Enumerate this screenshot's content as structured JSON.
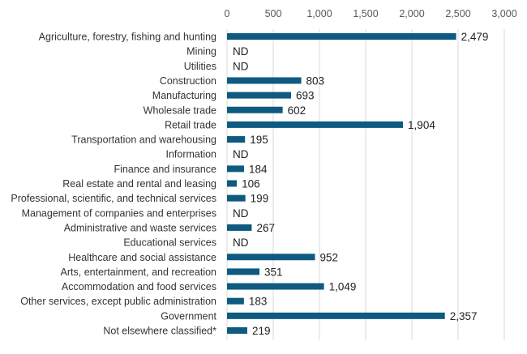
{
  "chart_data": {
    "type": "bar",
    "orientation": "horizontal",
    "title": "",
    "xlabel": "",
    "ylabel": "",
    "xlim": [
      0,
      3000
    ],
    "ticks": [
      0,
      500,
      1000,
      1500,
      2000,
      2500,
      3000
    ],
    "tick_labels": [
      "0",
      "500",
      "1,000",
      "1,500",
      "2,000",
      "2,500",
      "3,000"
    ],
    "axis_position": "top",
    "grid": true,
    "bar_color": "#0e5a80",
    "categories": [
      "Agriculture, forestry, fishing and hunting",
      "Mining",
      "Utilities",
      "Construction",
      "Manufacturing",
      "Wholesale trade",
      "Retail trade",
      "Transportation and warehousing",
      "Information",
      "Finance and insurance",
      "Real estate and rental and leasing",
      "Professional, scientific, and technical services",
      "Management of companies and enterprises",
      "Administrative and waste services",
      "Educational services",
      "Healthcare and social assistance",
      "Arts, entertainment, and recreation",
      "Accommodation and food services",
      "Other services, except public administration",
      "Government",
      "Not elsewhere classified*"
    ],
    "values": [
      2479,
      null,
      null,
      803,
      693,
      602,
      1904,
      195,
      null,
      184,
      106,
      199,
      null,
      267,
      null,
      952,
      351,
      1049,
      183,
      2357,
      219
    ],
    "data_labels": [
      "2,479",
      "ND",
      "ND",
      "803",
      "693",
      "602",
      "1,904",
      "195",
      "ND",
      "184",
      "106",
      "199",
      "ND",
      "267",
      "ND",
      "952",
      "351",
      "1,049",
      "183",
      "2,357",
      "219"
    ]
  }
}
